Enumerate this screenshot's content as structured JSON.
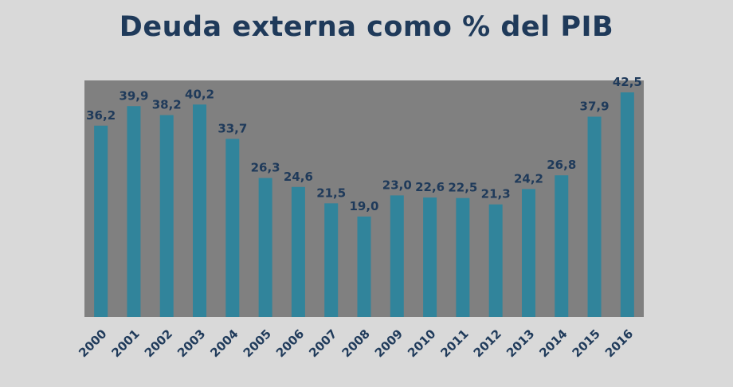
{
  "title": "Deuda externa como % del PIB",
  "colors": {
    "background": "#d9d9d9",
    "plot_area": "#808080",
    "bar": "#31849b",
    "text": "#1f3a5a"
  },
  "chart_data": {
    "type": "bar",
    "title": "Deuda externa como % del PIB",
    "xlabel": "",
    "ylabel": "",
    "categories": [
      "2000",
      "2001",
      "2002",
      "2003",
      "2004",
      "2005",
      "2006",
      "2007",
      "2008",
      "2009",
      "2010",
      "2011",
      "2012",
      "2013",
      "2014",
      "2015",
      "2016"
    ],
    "values": [
      36.2,
      39.9,
      38.2,
      40.2,
      33.7,
      26.3,
      24.6,
      21.5,
      19.0,
      23.0,
      22.6,
      22.5,
      21.3,
      24.2,
      26.8,
      37.9,
      42.5
    ],
    "value_labels": [
      "36,2",
      "39,9",
      "38,2",
      "40,2",
      "33,7",
      "26,3",
      "24,6",
      "21,5",
      "19,0",
      "23,0",
      "22,6",
      "22,5",
      "21,3",
      "24,2",
      "26,8",
      "37,9",
      "42,5"
    ],
    "ylim": [
      0,
      42.5
    ],
    "grid": false,
    "legend": "none"
  }
}
